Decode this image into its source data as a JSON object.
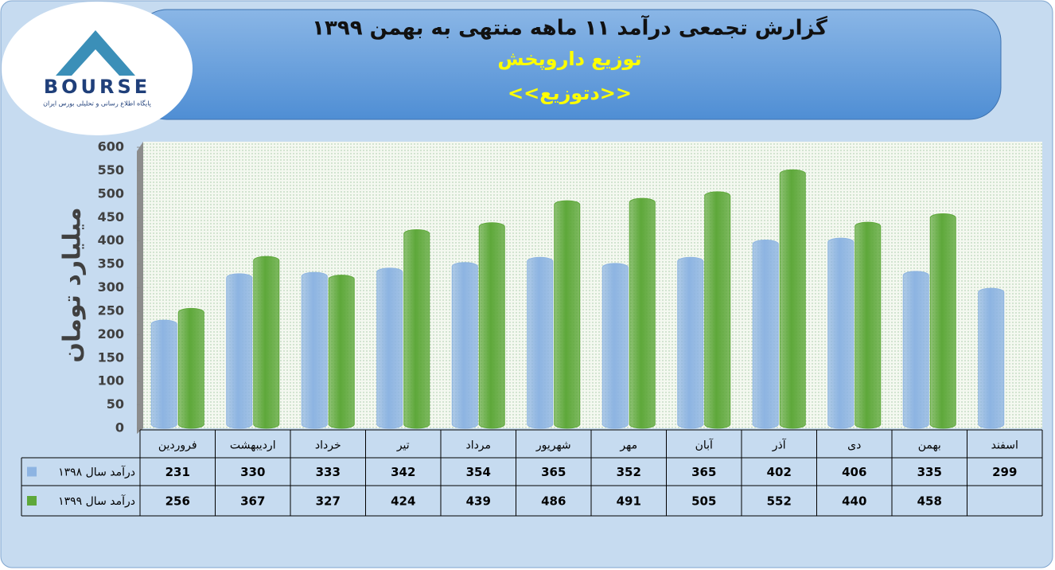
{
  "logo": {
    "text": "BOURSE",
    "tagline": "پایگاه اطلاع رسانی و تحلیلی بورس ایران"
  },
  "chart_data": {
    "type": "bar",
    "title": "گزارش تجمعی درآمد ۱۱ ماهه منتهی به بهمن ۱۳۹۹",
    "subtitle": "توزیع داروپخش",
    "annotations": [
      "<<دتوزیع>>"
    ],
    "y_label": "میلیارد تومان",
    "categories": [
      "فروردین",
      "اردیبهشت",
      "خرداد",
      "تیر",
      "مرداد",
      "شهریور",
      "مهر",
      "آبان",
      "آذر",
      "دی",
      "بهمن",
      "اسفند"
    ],
    "series": [
      {
        "name": "درآمد سال ۱۳۹۸",
        "color": "#8db4e2",
        "values": [
          231,
          330,
          333,
          342,
          354,
          365,
          352,
          365,
          402,
          406,
          335,
          299
        ]
      },
      {
        "name": "درآمد سال ۱۳۹۹",
        "color": "#5ea83a",
        "values": [
          256,
          367,
          327,
          424,
          439,
          486,
          491,
          505,
          552,
          440,
          458,
          null
        ]
      }
    ],
    "ylim": [
      0,
      600
    ],
    "yticks": [
      0,
      50,
      100,
      150,
      200,
      250,
      300,
      350,
      400,
      450,
      500,
      550,
      600
    ],
    "grid": false,
    "data_table": true
  }
}
